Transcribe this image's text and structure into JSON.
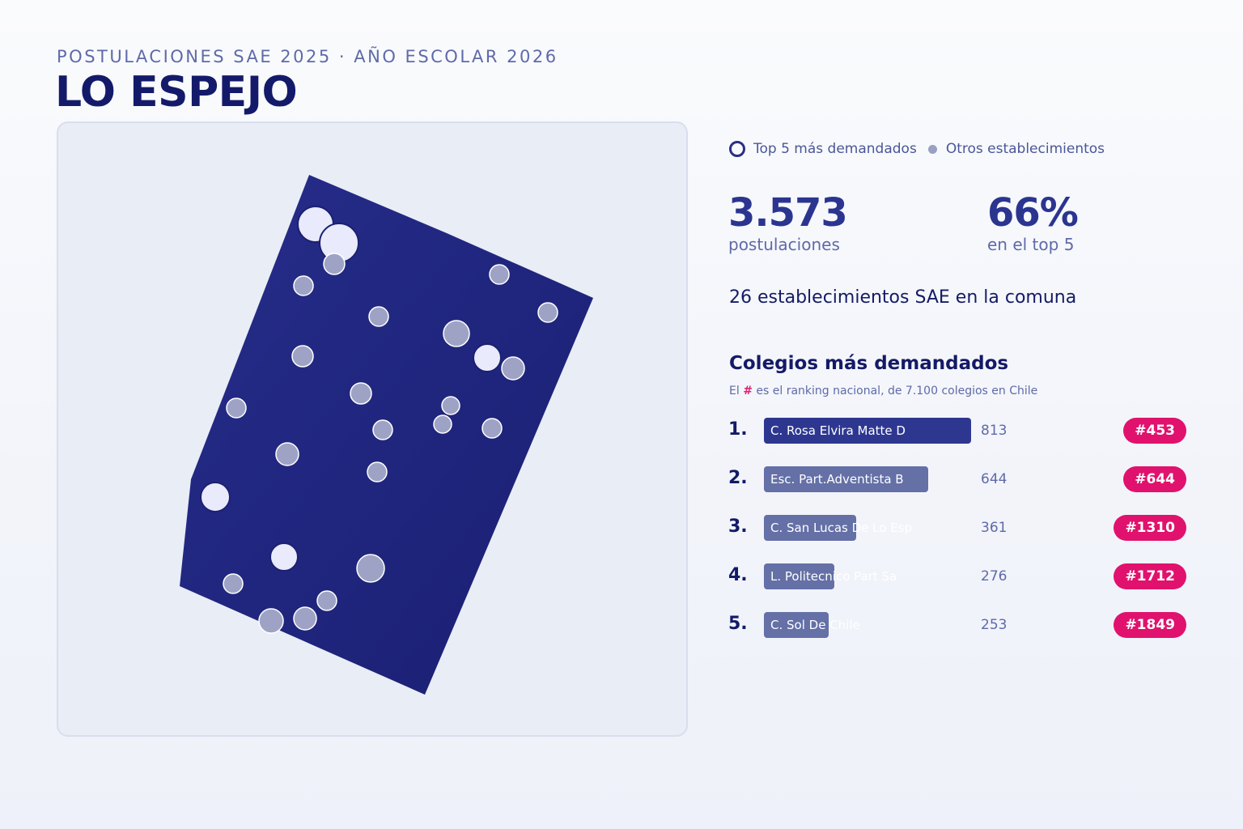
{
  "header": {
    "kicker": "POSTULACIONES SAE 2025 · AÑO ESCOLAR 2026",
    "title": "LO ESPEJO"
  },
  "legend": {
    "top_label": "Top 5 más demandados",
    "other_label": "Otros establecimientos"
  },
  "stats": {
    "postulaciones_value": "3.573",
    "postulaciones_label": "postulaciones",
    "top5_value": "66%",
    "top5_label": "en el top 5"
  },
  "comuna_line": "26 establecimientos SAE en la comuna",
  "ranking": {
    "title": "Colegios más demandados",
    "subtitle_before": "El",
    "subtitle_hash": "#",
    "subtitle_after": "es el ranking nacional, de 7.100 colegios en Chile",
    "items": [
      {
        "rank": "1.",
        "name": "C. Rosa Elvira Matte D",
        "value": "813",
        "national": "#453"
      },
      {
        "rank": "2.",
        "name": "Esc. Part.Adventista B",
        "value": "644",
        "national": "#644"
      },
      {
        "rank": "3.",
        "name": "C. San Lucas De Lo Esp",
        "value": "361",
        "national": "#1310"
      },
      {
        "rank": "4.",
        "name": "L. Politecnico Part Sa",
        "value": "276",
        "national": "#1712"
      },
      {
        "rank": "5.",
        "name": "C. Sol De Chile",
        "value": "253",
        "national": "#1849"
      }
    ]
  },
  "colors": {
    "region_fill": "#232a84",
    "top_school_fill": "#e9eafb",
    "other_school_fill": "#9ea3c6",
    "rank1_bar": "#2e3790",
    "rank_bar": "#6470a6",
    "badge": "#e0126d"
  }
}
